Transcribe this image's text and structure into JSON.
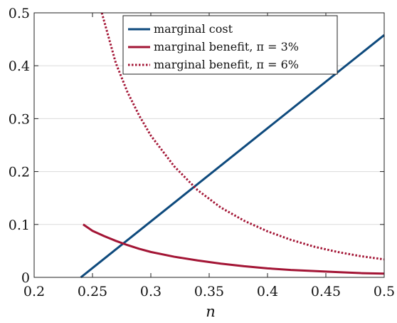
{
  "chart_data": {
    "type": "line",
    "title": "",
    "xlabel": "n",
    "ylabel": "",
    "xlim": [
      0.2,
      0.5
    ],
    "ylim": [
      0,
      0.5
    ],
    "grid": "horizontal",
    "legend_position": "top-right",
    "x_ticks": [
      "0.2",
      "0.25",
      "0.3",
      "0.35",
      "0.4",
      "0.45",
      "0.5"
    ],
    "y_ticks": [
      "0",
      "0.1",
      "0.2",
      "0.3",
      "0.4",
      "0.5"
    ],
    "x_tick_values": [
      0.2,
      0.25,
      0.3,
      0.35,
      0.4,
      0.45,
      0.5
    ],
    "y_tick_values": [
      0,
      0.1,
      0.2,
      0.3,
      0.4,
      0.5
    ],
    "series": [
      {
        "name": "marginal cost",
        "color": "#0e4a7d",
        "style": "solid",
        "x": [
          0.24,
          0.5
        ],
        "y": [
          0.0,
          0.458
        ]
      },
      {
        "name": "marginal benefit, π = 3%",
        "color": "#a31535",
        "style": "solid",
        "x": [
          0.242,
          0.25,
          0.26,
          0.27,
          0.28,
          0.29,
          0.3,
          0.32,
          0.34,
          0.36,
          0.38,
          0.4,
          0.42,
          0.44,
          0.46,
          0.48,
          0.5
        ],
        "y": [
          0.1,
          0.088,
          0.078,
          0.069,
          0.061,
          0.054,
          0.048,
          0.039,
          0.032,
          0.026,
          0.021,
          0.017,
          0.014,
          0.012,
          0.01,
          0.008,
          0.007
        ]
      },
      {
        "name": "marginal benefit, π = 6%",
        "color": "#a31535",
        "style": "dotted",
        "x": [
          0.258,
          0.27,
          0.28,
          0.29,
          0.3,
          0.32,
          0.34,
          0.36,
          0.38,
          0.4,
          0.42,
          0.44,
          0.46,
          0.48,
          0.5
        ],
        "y": [
          0.5,
          0.405,
          0.35,
          0.306,
          0.268,
          0.21,
          0.165,
          0.132,
          0.107,
          0.087,
          0.071,
          0.058,
          0.048,
          0.04,
          0.034
        ]
      }
    ]
  }
}
